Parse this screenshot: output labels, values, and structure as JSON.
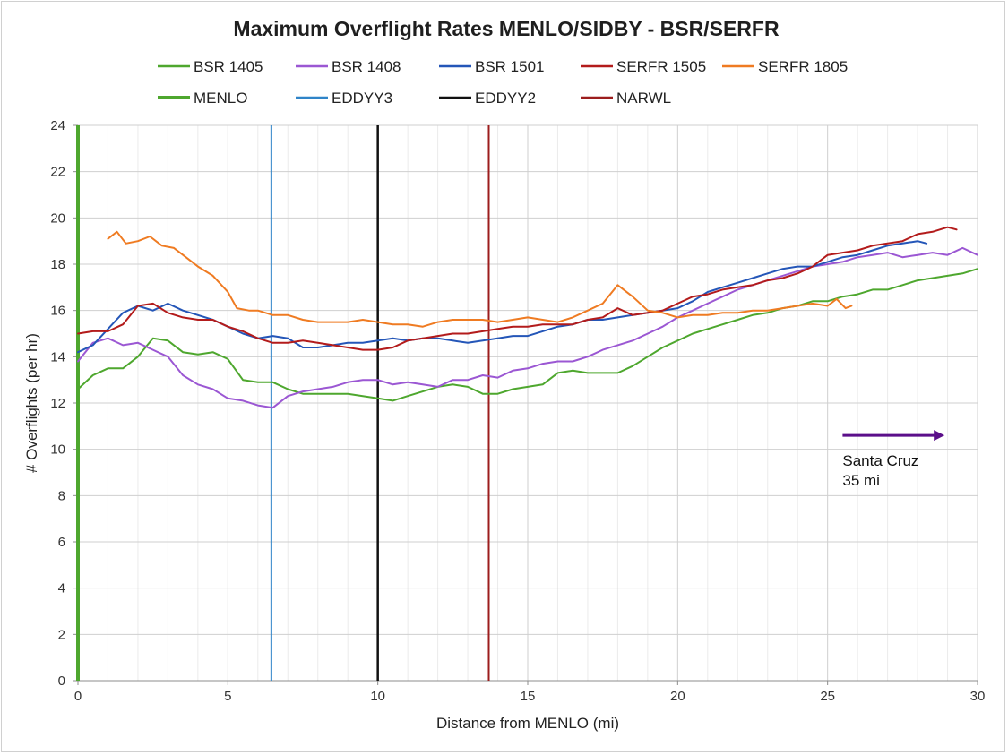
{
  "chart_data": {
    "type": "line",
    "title": "Maximum Overflight Rates MENLO/SIDBY - BSR/SERFR",
    "xlabel": "Distance from MENLO (mi)",
    "ylabel": "# Overflights (per hr)",
    "xlim": [
      0,
      30
    ],
    "ylim": [
      0,
      24
    ],
    "x_ticks": [
      0,
      5,
      10,
      15,
      20,
      25,
      30
    ],
    "y_ticks": [
      0,
      2,
      4,
      6,
      8,
      10,
      12,
      14,
      16,
      18,
      20,
      22,
      24
    ],
    "x_minor_step": 1,
    "grid": "on",
    "legend_position": "top",
    "series": [
      {
        "name": "BSR 1405",
        "color": "#4ea72e",
        "width": 2,
        "points": [
          [
            0,
            12.6
          ],
          [
            0.5,
            13.2
          ],
          [
            1,
            13.5
          ],
          [
            1.5,
            13.5
          ],
          [
            2,
            14.0
          ],
          [
            2.5,
            14.8
          ],
          [
            3,
            14.7
          ],
          [
            3.5,
            14.2
          ],
          [
            4,
            14.1
          ],
          [
            4.5,
            14.2
          ],
          [
            5,
            13.9
          ],
          [
            5.5,
            13.0
          ],
          [
            6,
            12.9
          ],
          [
            6.5,
            12.9
          ],
          [
            7,
            12.6
          ],
          [
            7.5,
            12.4
          ],
          [
            8,
            12.4
          ],
          [
            8.5,
            12.4
          ],
          [
            9,
            12.4
          ],
          [
            9.5,
            12.3
          ],
          [
            10,
            12.2
          ],
          [
            10.5,
            12.1
          ],
          [
            11,
            12.3
          ],
          [
            11.5,
            12.5
          ],
          [
            12,
            12.7
          ],
          [
            12.5,
            12.8
          ],
          [
            13,
            12.7
          ],
          [
            13.5,
            12.4
          ],
          [
            14,
            12.4
          ],
          [
            14.5,
            12.6
          ],
          [
            15,
            12.7
          ],
          [
            15.5,
            12.8
          ],
          [
            16,
            13.3
          ],
          [
            16.5,
            13.4
          ],
          [
            17,
            13.3
          ],
          [
            17.5,
            13.3
          ],
          [
            18,
            13.3
          ],
          [
            18.5,
            13.6
          ],
          [
            19,
            14.0
          ],
          [
            19.5,
            14.4
          ],
          [
            20,
            14.7
          ],
          [
            20.5,
            15.0
          ],
          [
            21,
            15.2
          ],
          [
            21.5,
            15.4
          ],
          [
            22,
            15.6
          ],
          [
            22.5,
            15.8
          ],
          [
            23,
            15.9
          ],
          [
            23.5,
            16.1
          ],
          [
            24,
            16.2
          ],
          [
            24.5,
            16.4
          ],
          [
            25,
            16.4
          ],
          [
            25.5,
            16.6
          ],
          [
            26,
            16.7
          ],
          [
            26.5,
            16.9
          ],
          [
            27,
            16.9
          ],
          [
            27.5,
            17.1
          ],
          [
            28,
            17.3
          ],
          [
            28.5,
            17.4
          ],
          [
            29,
            17.5
          ],
          [
            29.5,
            17.6
          ],
          [
            30,
            17.8
          ]
        ]
      },
      {
        "name": "BSR 1408",
        "color": "#9b57d3",
        "width": 2,
        "points": [
          [
            0,
            13.8
          ],
          [
            0.5,
            14.6
          ],
          [
            1,
            14.8
          ],
          [
            1.5,
            14.5
          ],
          [
            2,
            14.6
          ],
          [
            2.5,
            14.3
          ],
          [
            3,
            14.0
          ],
          [
            3.5,
            13.2
          ],
          [
            4,
            12.8
          ],
          [
            4.5,
            12.6
          ],
          [
            5,
            12.2
          ],
          [
            5.5,
            12.1
          ],
          [
            6,
            11.9
          ],
          [
            6.5,
            11.8
          ],
          [
            7,
            12.3
          ],
          [
            7.5,
            12.5
          ],
          [
            8,
            12.6
          ],
          [
            8.5,
            12.7
          ],
          [
            9,
            12.9
          ],
          [
            9.5,
            13.0
          ],
          [
            10,
            13.0
          ],
          [
            10.5,
            12.8
          ],
          [
            11,
            12.9
          ],
          [
            11.5,
            12.8
          ],
          [
            12,
            12.7
          ],
          [
            12.5,
            13.0
          ],
          [
            13,
            13.0
          ],
          [
            13.5,
            13.2
          ],
          [
            14,
            13.1
          ],
          [
            14.5,
            13.4
          ],
          [
            15,
            13.5
          ],
          [
            15.5,
            13.7
          ],
          [
            16,
            13.8
          ],
          [
            16.5,
            13.8
          ],
          [
            17,
            14.0
          ],
          [
            17.5,
            14.3
          ],
          [
            18,
            14.5
          ],
          [
            18.5,
            14.7
          ],
          [
            19,
            15.0
          ],
          [
            19.5,
            15.3
          ],
          [
            20,
            15.7
          ],
          [
            20.5,
            16.0
          ],
          [
            21,
            16.3
          ],
          [
            21.5,
            16.6
          ],
          [
            22,
            16.9
          ],
          [
            22.5,
            17.1
          ],
          [
            23,
            17.3
          ],
          [
            23.5,
            17.5
          ],
          [
            24,
            17.7
          ],
          [
            24.5,
            17.9
          ],
          [
            25,
            18.0
          ],
          [
            25.5,
            18.1
          ],
          [
            26,
            18.3
          ],
          [
            26.5,
            18.4
          ],
          [
            27,
            18.5
          ],
          [
            27.5,
            18.3
          ],
          [
            28,
            18.4
          ],
          [
            28.5,
            18.5
          ],
          [
            29,
            18.4
          ],
          [
            29.5,
            18.7
          ],
          [
            30,
            18.4
          ]
        ]
      },
      {
        "name": "BSR 1501",
        "color": "#2456b8",
        "width": 2,
        "points": [
          [
            0,
            14.2
          ],
          [
            0.5,
            14.5
          ],
          [
            1,
            15.2
          ],
          [
            1.5,
            15.9
          ],
          [
            2,
            16.2
          ],
          [
            2.5,
            16.0
          ],
          [
            3,
            16.3
          ],
          [
            3.5,
            16.0
          ],
          [
            4,
            15.8
          ],
          [
            4.5,
            15.6
          ],
          [
            5,
            15.3
          ],
          [
            5.5,
            15.0
          ],
          [
            6,
            14.8
          ],
          [
            6.5,
            14.9
          ],
          [
            7,
            14.8
          ],
          [
            7.5,
            14.4
          ],
          [
            8,
            14.4
          ],
          [
            8.5,
            14.5
          ],
          [
            9,
            14.6
          ],
          [
            9.5,
            14.6
          ],
          [
            10,
            14.7
          ],
          [
            10.5,
            14.8
          ],
          [
            11,
            14.7
          ],
          [
            11.5,
            14.8
          ],
          [
            12,
            14.8
          ],
          [
            12.5,
            14.7
          ],
          [
            13,
            14.6
          ],
          [
            13.5,
            14.7
          ],
          [
            14,
            14.8
          ],
          [
            14.5,
            14.9
          ],
          [
            15,
            14.9
          ],
          [
            15.5,
            15.1
          ],
          [
            16,
            15.3
          ],
          [
            16.5,
            15.4
          ],
          [
            17,
            15.6
          ],
          [
            17.5,
            15.6
          ],
          [
            18,
            15.7
          ],
          [
            18.5,
            15.8
          ],
          [
            19,
            15.9
          ],
          [
            19.5,
            16.0
          ],
          [
            20,
            16.1
          ],
          [
            20.5,
            16.4
          ],
          [
            21,
            16.8
          ],
          [
            21.5,
            17.0
          ],
          [
            22,
            17.2
          ],
          [
            22.5,
            17.4
          ],
          [
            23,
            17.6
          ],
          [
            23.5,
            17.8
          ],
          [
            24,
            17.9
          ],
          [
            24.5,
            17.9
          ],
          [
            25,
            18.1
          ],
          [
            25.5,
            18.3
          ],
          [
            26,
            18.4
          ],
          [
            26.5,
            18.6
          ],
          [
            27,
            18.8
          ],
          [
            27.5,
            18.9
          ],
          [
            28,
            19.0
          ],
          [
            28.3,
            18.9
          ]
        ]
      },
      {
        "name": "SERFR 1505",
        "color": "#b31b1b",
        "width": 2,
        "points": [
          [
            0,
            15.0
          ],
          [
            0.5,
            15.1
          ],
          [
            1,
            15.1
          ],
          [
            1.5,
            15.4
          ],
          [
            2,
            16.2
          ],
          [
            2.5,
            16.3
          ],
          [
            3,
            15.9
          ],
          [
            3.5,
            15.7
          ],
          [
            4,
            15.6
          ],
          [
            4.5,
            15.6
          ],
          [
            5,
            15.3
          ],
          [
            5.5,
            15.1
          ],
          [
            6,
            14.8
          ],
          [
            6.5,
            14.6
          ],
          [
            7,
            14.6
          ],
          [
            7.5,
            14.7
          ],
          [
            8,
            14.6
          ],
          [
            8.5,
            14.5
          ],
          [
            9,
            14.4
          ],
          [
            9.5,
            14.3
          ],
          [
            10,
            14.3
          ],
          [
            10.5,
            14.4
          ],
          [
            11,
            14.7
          ],
          [
            11.5,
            14.8
          ],
          [
            12,
            14.9
          ],
          [
            12.5,
            15.0
          ],
          [
            13,
            15.0
          ],
          [
            13.5,
            15.1
          ],
          [
            14,
            15.2
          ],
          [
            14.5,
            15.3
          ],
          [
            15,
            15.3
          ],
          [
            15.5,
            15.4
          ],
          [
            16,
            15.4
          ],
          [
            16.5,
            15.4
          ],
          [
            17,
            15.6
          ],
          [
            17.5,
            15.7
          ],
          [
            18,
            16.1
          ],
          [
            18.5,
            15.8
          ],
          [
            19,
            15.9
          ],
          [
            19.5,
            16.0
          ],
          [
            20,
            16.3
          ],
          [
            20.5,
            16.6
          ],
          [
            21,
            16.7
          ],
          [
            21.5,
            16.9
          ],
          [
            22,
            17.0
          ],
          [
            22.5,
            17.1
          ],
          [
            23,
            17.3
          ],
          [
            23.5,
            17.4
          ],
          [
            24,
            17.6
          ],
          [
            24.5,
            17.9
          ],
          [
            25,
            18.4
          ],
          [
            25.5,
            18.5
          ],
          [
            26,
            18.6
          ],
          [
            26.5,
            18.8
          ],
          [
            27,
            18.9
          ],
          [
            27.5,
            19.0
          ],
          [
            28,
            19.3
          ],
          [
            28.5,
            19.4
          ],
          [
            29,
            19.6
          ],
          [
            29.3,
            19.5
          ]
        ]
      },
      {
        "name": "SERFR 1805",
        "color": "#ef7b22",
        "width": 2,
        "points": [
          [
            1,
            19.1
          ],
          [
            1.3,
            19.4
          ],
          [
            1.6,
            18.9
          ],
          [
            2,
            19.0
          ],
          [
            2.4,
            19.2
          ],
          [
            2.8,
            18.8
          ],
          [
            3.2,
            18.7
          ],
          [
            3.6,
            18.3
          ],
          [
            4,
            17.9
          ],
          [
            4.5,
            17.5
          ],
          [
            5,
            16.8
          ],
          [
            5.3,
            16.1
          ],
          [
            5.7,
            16.0
          ],
          [
            6,
            16.0
          ],
          [
            6.5,
            15.8
          ],
          [
            7,
            15.8
          ],
          [
            7.5,
            15.6
          ],
          [
            8,
            15.5
          ],
          [
            8.5,
            15.5
          ],
          [
            9,
            15.5
          ],
          [
            9.5,
            15.6
          ],
          [
            10,
            15.5
          ],
          [
            10.5,
            15.4
          ],
          [
            11,
            15.4
          ],
          [
            11.5,
            15.3
          ],
          [
            12,
            15.5
          ],
          [
            12.5,
            15.6
          ],
          [
            13,
            15.6
          ],
          [
            13.5,
            15.6
          ],
          [
            14,
            15.5
          ],
          [
            14.5,
            15.6
          ],
          [
            15,
            15.7
          ],
          [
            15.5,
            15.6
          ],
          [
            16,
            15.5
          ],
          [
            16.5,
            15.7
          ],
          [
            17,
            16.0
          ],
          [
            17.5,
            16.3
          ],
          [
            18,
            17.1
          ],
          [
            18.5,
            16.6
          ],
          [
            19,
            16.0
          ],
          [
            19.5,
            15.9
          ],
          [
            20,
            15.7
          ],
          [
            20.5,
            15.8
          ],
          [
            21,
            15.8
          ],
          [
            21.5,
            15.9
          ],
          [
            22,
            15.9
          ],
          [
            22.5,
            16.0
          ],
          [
            23,
            16.0
          ],
          [
            23.5,
            16.1
          ],
          [
            24,
            16.2
          ],
          [
            24.5,
            16.3
          ],
          [
            25,
            16.2
          ],
          [
            25.3,
            16.5
          ],
          [
            25.6,
            16.1
          ],
          [
            25.8,
            16.2
          ]
        ]
      }
    ],
    "markers": [
      {
        "name": "MENLO",
        "x": 0,
        "color": "#4ea72e",
        "width": 4
      },
      {
        "name": "EDDYY3",
        "x": 6.45,
        "color": "#2f84c8",
        "width": 2
      },
      {
        "name": "EDDYY2",
        "x": 10,
        "color": "#111111",
        "width": 2.5
      },
      {
        "name": "NARWL",
        "x": 13.7,
        "color": "#9c1d1d",
        "width": 2
      }
    ],
    "annotation": {
      "lines": [
        "Santa Cruz",
        "35 mi"
      ],
      "arrow_color": "#5b0f8a",
      "arrow_x": [
        25.5,
        28.9
      ],
      "arrow_y": 10.6,
      "text_x": 25.5,
      "text_y": 9.3
    },
    "legend": {
      "row1": [
        "BSR 1405",
        "BSR 1408",
        "BSR 1501",
        "SERFR 1505",
        "SERFR 1805"
      ],
      "row2": [
        "MENLO",
        "EDDYY3",
        "EDDYY2",
        "NARWL"
      ]
    }
  }
}
